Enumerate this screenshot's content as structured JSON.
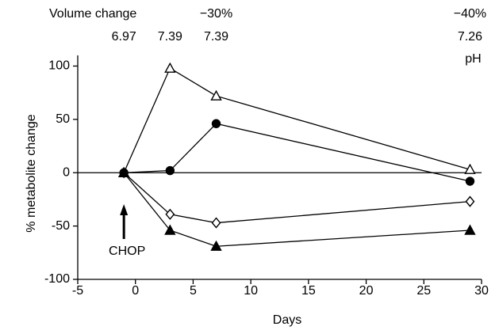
{
  "chart_data": {
    "type": "line",
    "x_label": "Days",
    "y_label": "% metabolite change",
    "xlim": [
      -5,
      30
    ],
    "xticks": [
      -5,
      0,
      5,
      10,
      15,
      20,
      25,
      30
    ],
    "ylim": [
      -100,
      110
    ],
    "yticks": [
      -100,
      -50,
      0,
      50,
      100
    ],
    "zero_line": true,
    "color": "#000000",
    "series": [
      {
        "marker": "triangle-open",
        "x": [
          -1,
          3,
          7,
          29
        ],
        "values": [
          0,
          98,
          72,
          3
        ]
      },
      {
        "marker": "circle-filled",
        "x": [
          -1,
          3,
          7,
          29
        ],
        "values": [
          0,
          2,
          46,
          -8
        ]
      },
      {
        "marker": "diamond-open",
        "x": [
          -1,
          3,
          7,
          29
        ],
        "values": [
          0,
          -39,
          -47,
          -27
        ]
      },
      {
        "marker": "triangle-filled",
        "x": [
          -1,
          3,
          7,
          29
        ],
        "values": [
          0,
          -54,
          -69,
          -54
        ]
      }
    ],
    "volume_change": {
      "label": "Volume change",
      "x": [
        7,
        29
      ],
      "values": [
        -30,
        -40
      ],
      "value_labels": [
        "−30%",
        "−40%"
      ]
    },
    "ph": {
      "label": "pH",
      "x": [
        -1,
        3,
        7,
        29
      ],
      "values": [
        6.97,
        7.39,
        7.39,
        7.26
      ]
    },
    "annotation": {
      "text": "CHOP",
      "x": -1
    }
  }
}
